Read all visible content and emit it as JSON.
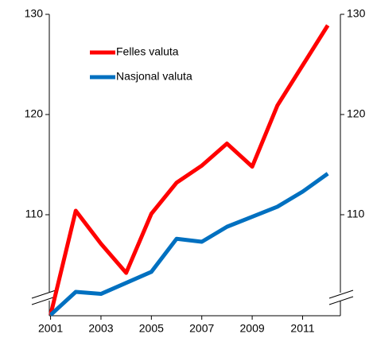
{
  "chart_data": {
    "type": "line",
    "x": [
      2001,
      2002,
      2003,
      2004,
      2005,
      2006,
      2007,
      2008,
      2009,
      2010,
      2011,
      2012
    ],
    "series": [
      {
        "name": "Felles valuta",
        "color": "#ff0000",
        "values": [
          100,
          110.4,
          107.1,
          104.2,
          110.1,
          113.2,
          114.9,
          117.1,
          114.8,
          120.9,
          124.9,
          128.9
        ]
      },
      {
        "name": "Nasjonal valuta",
        "color": "#0070c0",
        "values": [
          100,
          102.3,
          102.1,
          103.2,
          104.3,
          107.6,
          107.3,
          108.8,
          109.8,
          110.8,
          112.3,
          114.1
        ]
      }
    ],
    "xlim": [
      2000.95,
      2012.5
    ],
    "xticks": [
      2001,
      2003,
      2005,
      2007,
      2009,
      2011
    ],
    "ylim": [
      100,
      130
    ],
    "yticks": [
      110,
      120,
      130
    ],
    "y2lim": [
      100,
      130
    ],
    "y2ticks": [
      110,
      120,
      130
    ]
  }
}
